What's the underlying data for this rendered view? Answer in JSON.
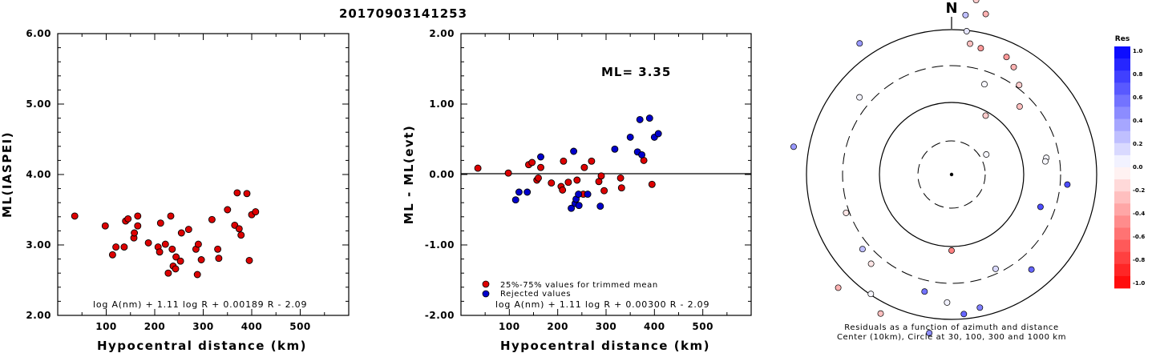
{
  "event_id": "20170903141253",
  "chart_data": [
    {
      "type": "scatter",
      "panel": "left",
      "title": "20170903141253",
      "xlabel": "Hypocentral distance (km)",
      "ylabel": "ML(IASPEI)",
      "xlim": [
        0,
        600
      ],
      "ylim": [
        2.0,
        6.0
      ],
      "xticks": [
        "100",
        "200",
        "300",
        "400",
        "500"
      ],
      "yticks": [
        "2.00",
        "3.00",
        "4.00",
        "5.00",
        "6.00"
      ],
      "formula": "log A(nm) + 1.11 log R + 0.00189 R - 2.09",
      "marker_color": "#dd0000",
      "series": [
        {
          "points": [
            [
              35,
              3.41
            ],
            [
              98,
              3.27
            ],
            [
              113,
              2.86
            ],
            [
              120,
              2.97
            ],
            [
              137,
              2.97
            ],
            [
              140,
              3.34
            ],
            [
              145,
              3.37
            ],
            [
              157,
              3.1
            ],
            [
              158,
              3.17
            ],
            [
              165,
              3.41
            ],
            [
              165,
              3.27
            ],
            [
              187,
              3.03
            ],
            [
              207,
              2.97
            ],
            [
              210,
              2.9
            ],
            [
              212,
              3.31
            ],
            [
              222,
              3.01
            ],
            [
              228,
              2.6
            ],
            [
              233,
              3.41
            ],
            [
              236,
              2.94
            ],
            [
              238,
              2.7
            ],
            [
              243,
              2.66
            ],
            [
              244,
              2.83
            ],
            [
              253,
              2.77
            ],
            [
              255,
              3.17
            ],
            [
              270,
              3.22
            ],
            [
              285,
              2.94
            ],
            [
              288,
              2.58
            ],
            [
              290,
              3.01
            ],
            [
              296,
              2.79
            ],
            [
              318,
              3.36
            ],
            [
              330,
              2.94
            ],
            [
              332,
              2.81
            ],
            [
              350,
              3.5
            ],
            [
              365,
              3.28
            ],
            [
              370,
              3.74
            ],
            [
              374,
              3.23
            ],
            [
              378,
              3.14
            ],
            [
              390,
              3.73
            ],
            [
              395,
              2.78
            ],
            [
              400,
              3.43
            ],
            [
              408,
              3.47
            ]
          ]
        }
      ]
    },
    {
      "type": "scatter",
      "panel": "middle",
      "xlabel": "Hypocentral distance (km)",
      "ylabel": "ML - ML(evt)",
      "xlim": [
        0,
        600
      ],
      "ylim": [
        -2.0,
        2.0
      ],
      "xticks": [
        "100",
        "200",
        "300",
        "400",
        "500"
      ],
      "yticks": [
        "-2.00",
        "-1.00",
        "0.00",
        "1.00",
        "2.00"
      ],
      "ml_label": "ML= 3.35",
      "formula": "log A(nm) + 1.11 log R + 0.00300 R - 2.09",
      "legend": [
        "25%-75% values for trimmed mean",
        "Rejected values"
      ],
      "series": [
        {
          "name": "25%-75% values for trimmed mean",
          "color": "#dd0000",
          "points": [
            [
              35,
              0.09
            ],
            [
              98,
              0.02
            ],
            [
              140,
              0.14
            ],
            [
              147,
              0.17
            ],
            [
              157,
              -0.08
            ],
            [
              160,
              -0.05
            ],
            [
              165,
              0.1
            ],
            [
              187,
              -0.12
            ],
            [
              207,
              -0.17
            ],
            [
              210,
              -0.22
            ],
            [
              212,
              0.19
            ],
            [
              222,
              -0.11
            ],
            [
              240,
              -0.08
            ],
            [
              253,
              -0.28
            ],
            [
              255,
              0.1
            ],
            [
              270,
              0.19
            ],
            [
              285,
              -0.1
            ],
            [
              290,
              -0.02
            ],
            [
              296,
              -0.23
            ],
            [
              330,
              -0.05
            ],
            [
              332,
              -0.19
            ],
            [
              378,
              0.2
            ],
            [
              395,
              -0.14
            ]
          ]
        },
        {
          "name": "Rejected values",
          "color": "#0000cc",
          "points": [
            [
              113,
              -0.36
            ],
            [
              120,
              -0.25
            ],
            [
              137,
              -0.25
            ],
            [
              165,
              0.25
            ],
            [
              228,
              -0.48
            ],
            [
              233,
              0.33
            ],
            [
              236,
              -0.41
            ],
            [
              238,
              -0.35
            ],
            [
              243,
              -0.28
            ],
            [
              244,
              -0.44
            ],
            [
              262,
              -0.28
            ],
            [
              288,
              -0.45
            ],
            [
              318,
              0.36
            ],
            [
              350,
              0.53
            ],
            [
              365,
              0.32
            ],
            [
              370,
              0.78
            ],
            [
              374,
              0.28
            ],
            [
              390,
              0.8
            ],
            [
              400,
              0.53
            ],
            [
              408,
              0.58
            ]
          ]
        }
      ]
    }
  ],
  "polar": {
    "north_label": "N",
    "caption_line1": "Residuals as a function of azimuth and distance",
    "caption_line2": "Center (10km), Circle at 30, 100, 300 and 1000 km",
    "stations": [
      [
        355,
        300,
        0.05
      ],
      [
        348,
        270,
        0.3
      ],
      [
        20,
        270,
        -0.1
      ],
      [
        15,
        270,
        -0.25
      ],
      [
        18,
        250,
        -0.35
      ],
      [
        10,
        240,
        -0.4
      ],
      [
        12,
        205,
        -0.3
      ],
      [
        8,
        220,
        -0.2
      ],
      [
        5,
        200,
        0.25
      ],
      [
        6,
        180,
        0.1
      ],
      [
        8,
        165,
        -0.25
      ],
      [
        13,
        162,
        -0.4
      ],
      [
        25,
        162,
        -0.4
      ],
      [
        30,
        155,
        -0.3
      ],
      [
        37,
        140,
        -0.2
      ],
      [
        45,
        120,
        -0.25
      ],
      [
        30,
        85,
        -0.2
      ],
      [
        20,
        120,
        0.03
      ],
      [
        60,
        50,
        0.03
      ],
      [
        80,
        120,
        0.03
      ],
      [
        82,
        118,
        0.03
      ],
      [
        95,
        145,
        0.7
      ],
      [
        110,
        118,
        0.7
      ],
      [
        140,
        155,
        0.6
      ],
      [
        155,
        130,
        0.15
      ],
      [
        168,
        170,
        0.5
      ],
      [
        175,
        175,
        0.6
      ],
      [
        182,
        160,
        0.05
      ],
      [
        188,
        200,
        0.45
      ],
      [
        193,
        150,
        0.55
      ],
      [
        180,
        95,
        -0.5
      ],
      [
        207,
        195,
        -0.25
      ],
      [
        214,
        180,
        0.03
      ],
      [
        222,
        150,
        -0.1
      ],
      [
        230,
        145,
        0.25
      ],
      [
        250,
        140,
        -0.1
      ],
      [
        280,
        200,
        0.4
      ],
      [
        310,
        150,
        0.05
      ],
      [
        325,
        200,
        0.4
      ],
      [
        225,
        200,
        -0.3
      ]
    ]
  },
  "colorbar": {
    "title": "Res",
    "labels": [
      "1.0",
      "0.8",
      "0.6",
      "0.4",
      "0.2",
      "0.0",
      "-0.2",
      "-0.4",
      "-0.6",
      "-0.8",
      "-1.0"
    ]
  }
}
